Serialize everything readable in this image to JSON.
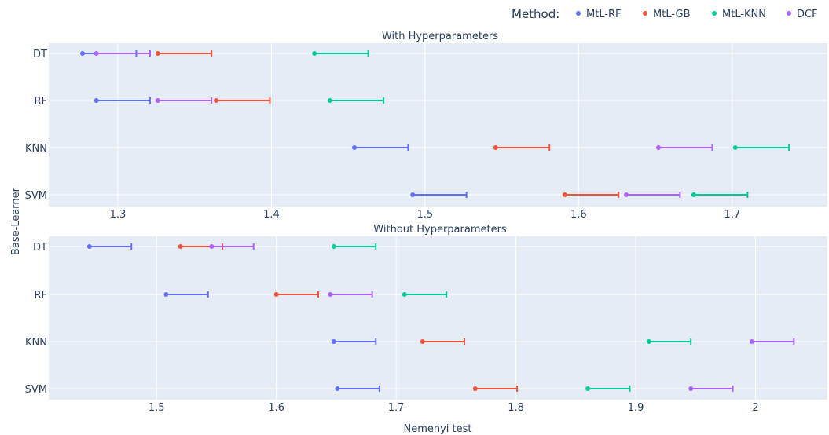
{
  "legend": {
    "title": "Method:",
    "items": [
      {
        "name": "MtL-RF",
        "color": "#636efa"
      },
      {
        "name": "MtL-GB",
        "color": "#ef553b"
      },
      {
        "name": "MtL-KNN",
        "color": "#00cc96"
      },
      {
        "name": "DCF",
        "color": "#ab63fa"
      }
    ]
  },
  "xlabel": "Nemenyi test",
  "ylabel": "Base-Learner",
  "chart_data": [
    {
      "type": "scatter",
      "title": "With Hyperparameters",
      "categories": [
        "DT",
        "RF",
        "KNN",
        "SVM"
      ],
      "xlim": [
        1.255,
        1.762
      ],
      "xticks": [
        "1.3",
        "1.4",
        "1.5",
        "1.6",
        "1.7"
      ],
      "grid": true,
      "series": [
        {
          "name": "MtL-RF",
          "color": "#636efa",
          "points": [
            [
              1.277,
              1.312
            ],
            [
              1.286,
              1.321
            ],
            [
              1.454,
              1.489
            ],
            [
              1.492,
              1.527
            ]
          ]
        },
        {
          "name": "MtL-GB",
          "color": "#ef553b",
          "points": [
            [
              1.326,
              1.361
            ],
            [
              1.364,
              1.399
            ],
            [
              1.546,
              1.581
            ],
            [
              1.591,
              1.626
            ]
          ]
        },
        {
          "name": "MtL-KNN",
          "color": "#00cc96",
          "points": [
            [
              1.428,
              1.463
            ],
            [
              1.438,
              1.473
            ],
            [
              1.702,
              1.737
            ],
            [
              1.675,
              1.71
            ]
          ]
        },
        {
          "name": "DCF",
          "color": "#ab63fa",
          "points": [
            [
              1.286,
              1.321
            ],
            [
              1.326,
              1.361
            ],
            [
              1.652,
              1.687
            ],
            [
              1.631,
              1.666
            ]
          ]
        }
      ]
    },
    {
      "type": "scatter",
      "title": "Without Hyperparameters",
      "categories": [
        "DT",
        "RF",
        "KNN",
        "SVM"
      ],
      "xlim": [
        1.41,
        2.06
      ],
      "xticks": [
        "1.5",
        "1.6",
        "1.7",
        "1.8",
        "1.9",
        "2"
      ],
      "grid": true,
      "series": [
        {
          "name": "MtL-RF",
          "color": "#636efa",
          "points": [
            [
              1.444,
              1.479
            ],
            [
              1.508,
              1.543
            ],
            [
              1.648,
              1.683
            ],
            [
              1.651,
              1.686
            ]
          ]
        },
        {
          "name": "MtL-GB",
          "color": "#ef553b",
          "points": [
            [
              1.52,
              1.555
            ],
            [
              1.6,
              1.635
            ],
            [
              1.722,
              1.757
            ],
            [
              1.766,
              1.801
            ]
          ]
        },
        {
          "name": "MtL-KNN",
          "color": "#00cc96",
          "points": [
            [
              1.648,
              1.683
            ],
            [
              1.707,
              1.742
            ],
            [
              1.911,
              1.946
            ],
            [
              1.86,
              1.895
            ]
          ]
        },
        {
          "name": "DCF",
          "color": "#ab63fa",
          "points": [
            [
              1.546,
              1.581
            ],
            [
              1.645,
              1.68
            ],
            [
              1.997,
              2.032
            ],
            [
              1.946,
              1.981
            ]
          ]
        }
      ]
    }
  ]
}
